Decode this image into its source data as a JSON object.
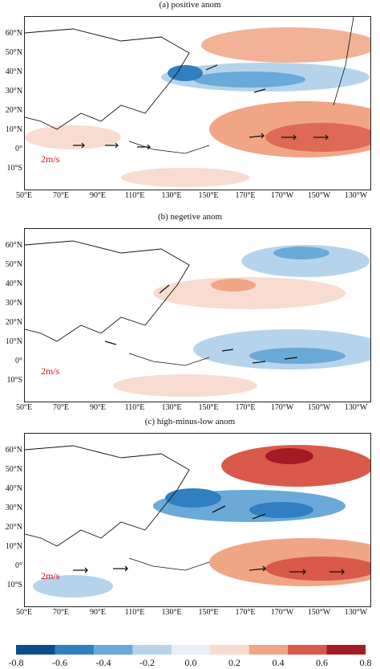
{
  "panels": [
    {
      "title": "(a) positive anom",
      "scale": "2m/s"
    },
    {
      "title": "(b) negetive anom",
      "scale": "2m/s"
    },
    {
      "title": "(c) high-minus-low anom",
      "scale": "2m/s"
    }
  ],
  "axes": {
    "lat_labels": [
      "60°N",
      "50°N",
      "40°N",
      "30°N",
      "20°N",
      "10°N",
      "0°",
      "10°S"
    ],
    "lon_labels": [
      "50°E",
      "70°E",
      "90°E",
      "110°E",
      "130°E",
      "150°E",
      "170°E",
      "170°W",
      "150°W",
      "130°W"
    ]
  },
  "colorbar": {
    "ticks": [
      "-0.8",
      "-0.6",
      "-0.4",
      "-0.2",
      "0.0",
      "0.2",
      "0.4",
      "0.6",
      "0.8"
    ],
    "colors": [
      "#0b4d8c",
      "#2f7fc1",
      "#6aa9d8",
      "#b5d4ec",
      "#e8eff7",
      "#f8dcd0",
      "#f0a585",
      "#d95a4a",
      "#a51a25"
    ]
  }
}
